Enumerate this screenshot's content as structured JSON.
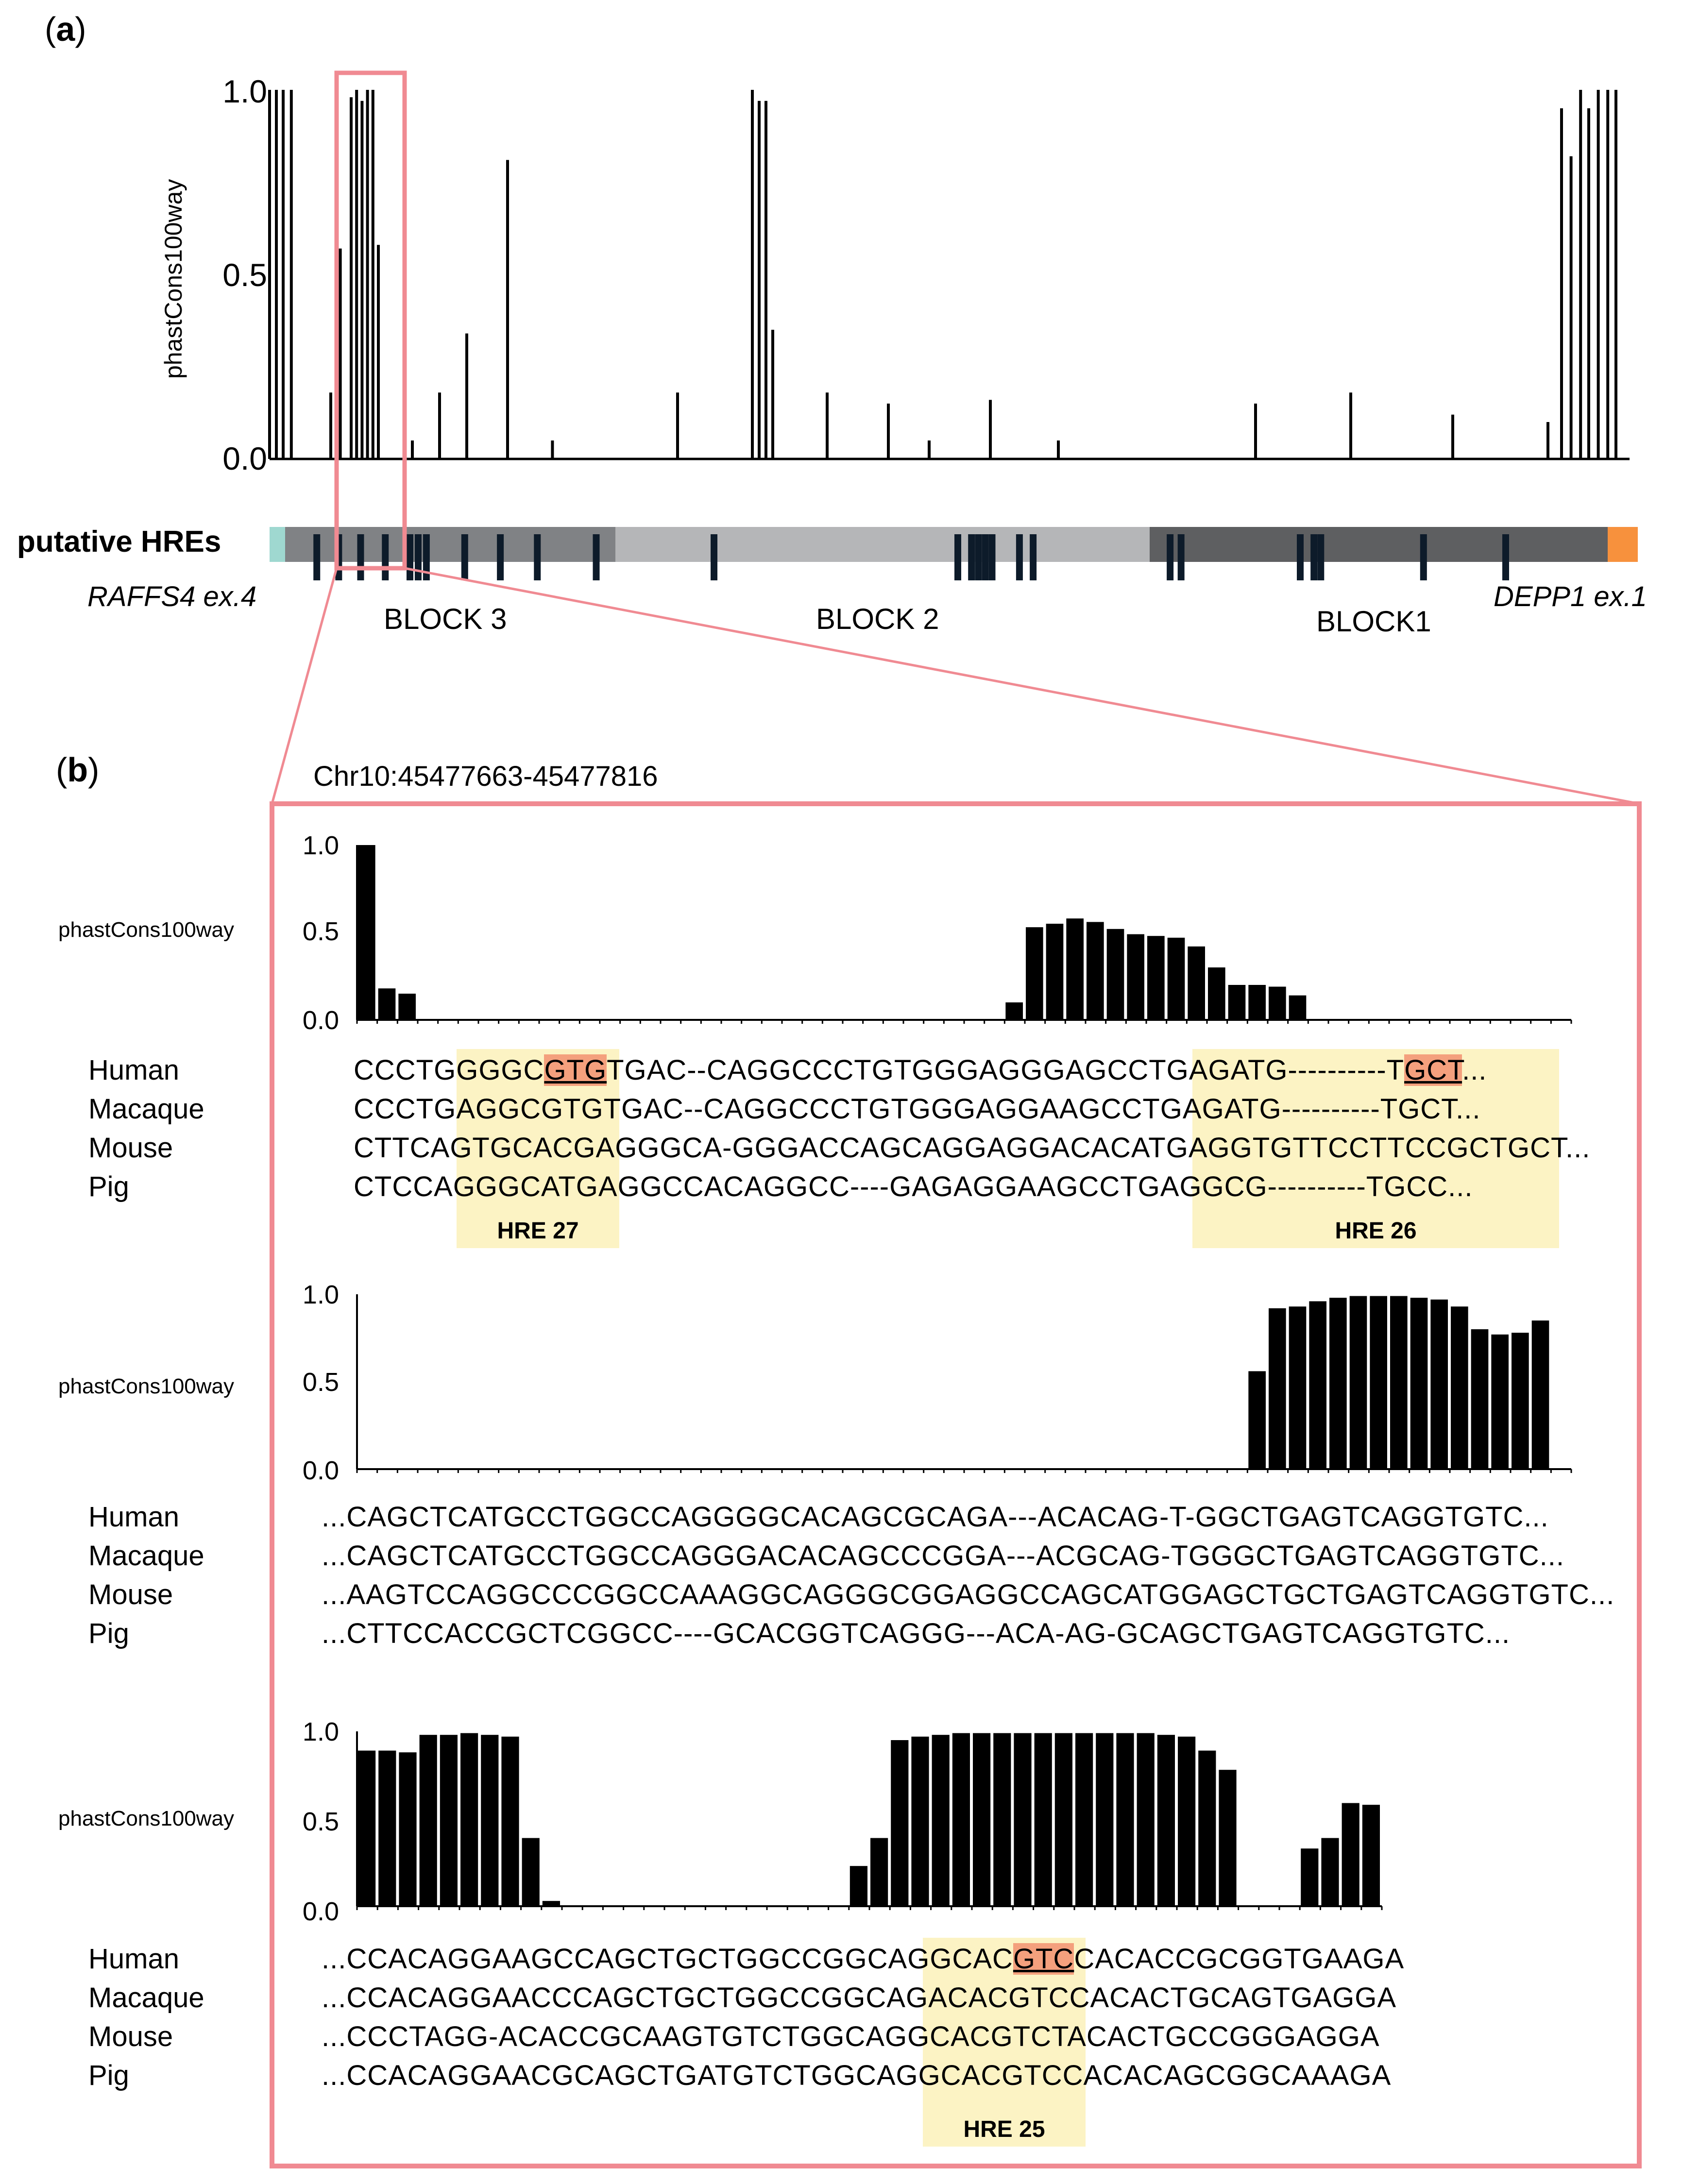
{
  "panel_a": {
    "label_letter": "a",
    "ylabel": "phastCons100way",
    "yticks": [
      "1.0",
      "0.5",
      "0.0"
    ],
    "track_label": "putative HREs",
    "gene_left": "RAFFS4 ex.4",
    "gene_right": "DEPP1 ex.1",
    "blocks": [
      "BLOCK 3",
      "BLOCK 2",
      "BLOCK1"
    ],
    "colors": {
      "block3": "#808285",
      "block2": "#b5b6b8",
      "block1": "#5e5f61",
      "left_end": "#9fd8d0",
      "right_end": "#f7913d",
      "highlight_box": "#f08a92"
    }
  },
  "panel_b": {
    "label_letter": "b",
    "coordinates": "Chr10:45477663-45477816",
    "ylabel": "phastCons100way",
    "yticks": [
      "1.0",
      "0.5",
      "0.0"
    ],
    "species": [
      "Human",
      "Macaque",
      "Mouse",
      "Pig"
    ],
    "rows": [
      {
        "sequences": [
          "CCCTGGGGCGTGTGAC--CAGGCCCTGTGGGAGGGAGCCTGAGATG----------TGCT...",
          "CCCTGAGGCGTGTGAC--CAGGCCCTGTGGGAGGAAGCCTGAGATG----------TGCT...",
          "CTTCAGTGCACGAGGGCA-GGGACCAGCAGGAGGACACATGAGGTGTTCCTTCCGCTGCT...",
          "CTCCAGGGCATGAGGCCACAGGCC----GAGAGGAAGCCTGAGGCG----------TGCC..."
        ],
        "hre_labels": [
          "HRE 27",
          "HRE 26"
        ]
      },
      {
        "sequences": [
          "...CAGCTCATGCCTGGCCAGGGGCACAGCGCAGA---ACACAG-T-GGCTGAGTCAGGTGTC...",
          "...CAGCTCATGCCTGGCCAGGGACACAGCCCGGA---ACGCAG-TGGGCTGAGTCAGGTGTC...",
          "...AAGTCCAGGCCCGGCCAAAGGCAGGGCGGAGGCCAGCATGGAGCTGCTGAGTCAGGTGTC...",
          "...CTTCCACCGCTCGGCC----GCACGGTCAGGG---ACA-AG-GCAGCTGAGTCAGGTGTC..."
        ],
        "hre_labels": []
      },
      {
        "sequences": [
          "...CCACAGGAAGCCAGCTGCTGGCCGGCAGGCACGTCCACACCGCGGTGAAGA",
          "...CCACAGGAACCCAGCTGCTGGCCGGCAGACACGTCCACACTGCAGTGAGGA",
          "...CCCTAGG-ACACCGCAAGTGTCTGGCAGGCACGTCTACACTGCCGGGAGGA",
          "...CCACAGGAACGCAGCTGATGTCTGGCAGGCACGTCCACACAGCGGCAAAGA"
        ],
        "hre_labels": [
          "HRE 25"
        ]
      }
    ]
  },
  "chart_data": [
    {
      "type": "bar",
      "title": "",
      "ylabel": "phastCons100way",
      "ylim": [
        0,
        1
      ],
      "yticks": [
        0.0,
        0.5,
        1.0
      ],
      "note": "Panel (a) conservation track across RAFFS4 ex.4 to DEPP1 ex.1; peak heights estimated",
      "x": [
        0.0,
        0.5,
        1.0,
        1.6,
        4.5,
        5.2,
        6.0,
        6.4,
        6.8,
        7.2,
        7.6,
        8.0,
        10.5,
        12.5,
        14.5,
        17.5,
        20.8,
        30.0,
        35.5,
        36.0,
        36.5,
        37.0,
        41.0,
        45.5,
        48.5,
        53.0,
        58.0,
        72.5,
        79.5,
        87.0,
        94.0,
        95.0,
        95.7,
        96.4,
        97.0,
        97.7,
        98.4,
        99.0
      ],
      "values": [
        1.0,
        1.0,
        1.0,
        1.0,
        0.18,
        0.57,
        0.98,
        1.0,
        0.97,
        1.0,
        1.0,
        0.58,
        0.05,
        0.18,
        0.34,
        0.81,
        0.05,
        0.18,
        1.0,
        0.97,
        0.97,
        0.35,
        0.18,
        0.15,
        0.05,
        0.16,
        0.05,
        0.15,
        0.18,
        0.12,
        0.1,
        0.95,
        0.82,
        1.0,
        0.95,
        1.0,
        1.0,
        1.0
      ]
    },
    {
      "type": "bar",
      "ylabel": "phastCons100way",
      "ylim": [
        0,
        1
      ],
      "note": "Panel (b) row 1, per-base conservation, positions 1-60",
      "values": [
        1.0,
        0.18,
        0.15,
        0,
        0,
        0,
        0,
        0,
        0,
        0,
        0,
        0,
        0,
        0,
        0,
        0,
        0,
        0,
        0,
        0,
        0,
        0,
        0,
        0,
        0,
        0,
        0,
        0,
        0,
        0,
        0,
        0,
        0.1,
        0.53,
        0.55,
        0.58,
        0.56,
        0.52,
        0.49,
        0.48,
        0.47,
        0.42,
        0.3,
        0.2,
        0.2,
        0.19,
        0.14,
        0,
        0,
        0,
        0,
        0,
        0,
        0,
        0,
        0,
        0,
        0,
        0,
        0
      ]
    },
    {
      "type": "bar",
      "ylabel": "phastCons100way",
      "ylim": [
        0,
        1
      ],
      "note": "Panel (b) row 2, per-base conservation, positions 1-60",
      "values": [
        0,
        0,
        0,
        0,
        0,
        0,
        0,
        0,
        0,
        0,
        0,
        0,
        0,
        0,
        0,
        0,
        0,
        0,
        0,
        0,
        0,
        0,
        0,
        0,
        0,
        0,
        0,
        0,
        0,
        0,
        0,
        0,
        0,
        0,
        0,
        0,
        0,
        0,
        0,
        0,
        0,
        0,
        0,
        0,
        0.56,
        0.92,
        0.93,
        0.96,
        0.98,
        0.99,
        0.99,
        0.99,
        0.98,
        0.97,
        0.93,
        0.8,
        0.77,
        0.78,
        0.85,
        0
      ]
    },
    {
      "type": "bar",
      "ylabel": "phastCons100way",
      "ylim": [
        0,
        1
      ],
      "note": "Panel (b) row 3, per-base conservation, positions 1-50",
      "values": [
        0.89,
        0.89,
        0.88,
        0.98,
        0.98,
        0.99,
        0.98,
        0.97,
        0.39,
        0.03,
        0,
        0,
        0,
        0,
        0,
        0,
        0,
        0,
        0,
        0,
        0,
        0,
        0,
        0,
        0.23,
        0.39,
        0.95,
        0.97,
        0.98,
        0.99,
        0.99,
        0.99,
        0.99,
        0.99,
        0.99,
        0.99,
        0.99,
        0.99,
        0.99,
        0.98,
        0.97,
        0.89,
        0.78,
        0,
        0,
        0,
        0.33,
        0.39,
        0.59,
        0.58
      ]
    }
  ]
}
